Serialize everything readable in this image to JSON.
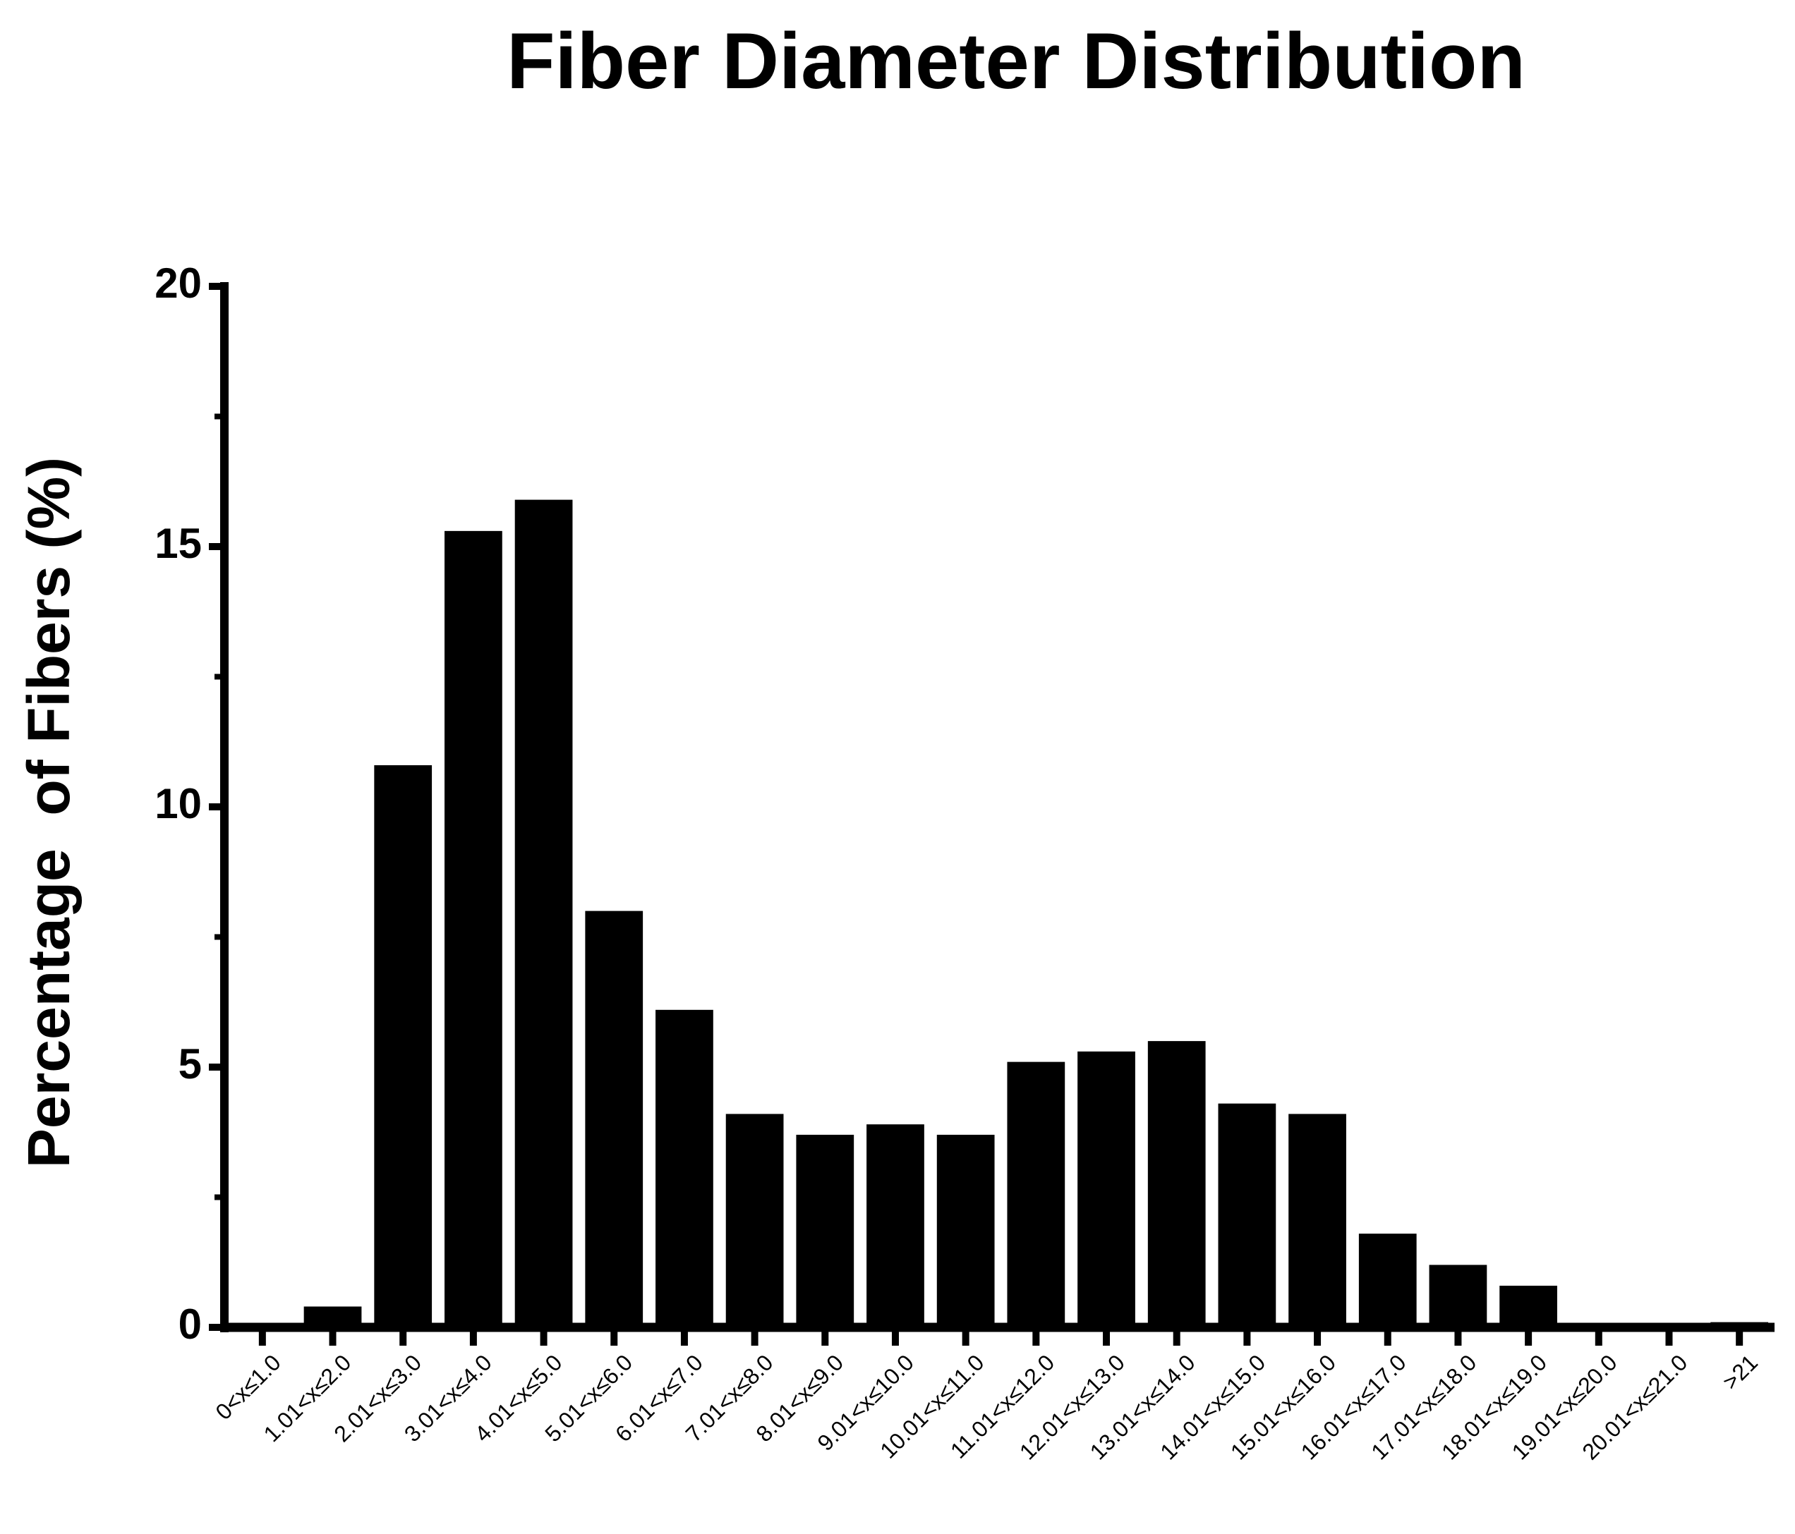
{
  "chart_data": {
    "type": "bar",
    "title": "Fiber Diameter Distribution",
    "y_label": "Percentage  of Fibers (%)",
    "categories": [
      "0<x≤1.0",
      "1.01<x≤2.0",
      "2.01<x≤3.0",
      "3.01<x≤4.0",
      "4.01<x≤5.0",
      "5.01<x≤6.0",
      "6.01<x≤7.0",
      "7.01<x≤8.0",
      "8.01<x≤9.0",
      "9.01<x≤10.0",
      "10.01<x≤11.0",
      "11.01<x≤12.0",
      "12.01<x≤13.0",
      "13.01<x≤14.0",
      "14.01<x≤15.0",
      "15.01<x≤16.0",
      "16.01<x≤17.0",
      "17.01<x≤18.0",
      "18.01<x≤19.0",
      "19.01<x≤20.0",
      "20.01<x≤21.0",
      ">21"
    ],
    "values": [
      0,
      0.4,
      10.8,
      15.3,
      15.9,
      8.0,
      6.1,
      4.1,
      3.7,
      3.9,
      3.7,
      5.1,
      5.3,
      5.5,
      4.3,
      4.1,
      1.8,
      1.2,
      0.8,
      0,
      0,
      0.1
    ],
    "color": "#000000",
    "ylim": [
      0,
      20
    ],
    "yticks": [
      0,
      5,
      10,
      15,
      20
    ],
    "yminorticks": [
      2.5,
      7.5,
      12.5,
      17.5
    ],
    "grid": false
  }
}
